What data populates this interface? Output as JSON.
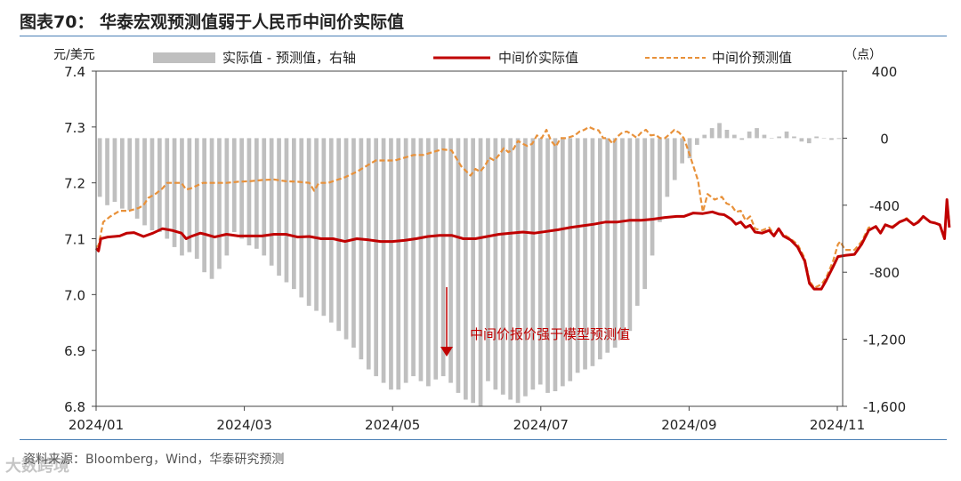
{
  "figure": {
    "title": "图表70：  华泰宏观预测值弱于人民币中间价实际值",
    "source": "资料来源：Bloomberg，Wind，华泰研究预测",
    "watermark": "大数跨境"
  },
  "colors": {
    "actual": "#c00000",
    "forecast": "#e8913a",
    "bars": "#bfbfbf",
    "annotation": "#c00000",
    "rule": "#4a7fb5"
  },
  "chart_data": {
    "type": "bar+line",
    "title": "华泰宏观预测值弱于人民币中间价实际值",
    "left_unit": "元/美元",
    "right_unit": "（点）",
    "ylim": [
      6.8,
      7.4
    ],
    "y_ticks": [
      "7.4",
      "7.3",
      "7.2",
      "7.1",
      "7.0",
      "6.9",
      "6.8"
    ],
    "y2lim": [
      -1600,
      400
    ],
    "y2_ticks": [
      "400",
      "0",
      "-400",
      "-800",
      "-1,200",
      "-1,600"
    ],
    "x_ticks": [
      "2024/01",
      "2024/03",
      "2024/05",
      "2024/07",
      "2024/09",
      "2024/11"
    ],
    "legend": {
      "bars": "实际值 - 预测值，右轴",
      "actual": "中间价实际值",
      "forecast": "中间价预测值"
    },
    "annotation": "中间价报价强于模型预测值",
    "days_total": 315,
    "actual": [
      [
        0,
        7.083
      ],
      [
        1,
        7.078
      ],
      [
        2,
        7.1
      ],
      [
        5,
        7.103
      ],
      [
        10,
        7.105
      ],
      [
        13,
        7.11
      ],
      [
        16,
        7.111
      ],
      [
        20,
        7.104
      ],
      [
        24,
        7.11
      ],
      [
        28,
        7.118
      ],
      [
        32,
        7.115
      ],
      [
        36,
        7.11
      ],
      [
        38,
        7.1
      ],
      [
        40,
        7.104
      ],
      [
        44,
        7.11
      ],
      [
        46,
        7.108
      ],
      [
        50,
        7.103
      ],
      [
        55,
        7.108
      ],
      [
        60,
        7.105
      ],
      [
        65,
        7.105
      ],
      [
        70,
        7.105
      ],
      [
        75,
        7.108
      ],
      [
        80,
        7.108
      ],
      [
        85,
        7.103
      ],
      [
        90,
        7.104
      ],
      [
        95,
        7.1
      ],
      [
        100,
        7.1
      ],
      [
        105,
        7.095
      ],
      [
        110,
        7.1
      ],
      [
        115,
        7.098
      ],
      [
        120,
        7.095
      ],
      [
        125,
        7.095
      ],
      [
        130,
        7.097
      ],
      [
        135,
        7.1
      ],
      [
        140,
        7.104
      ],
      [
        145,
        7.106
      ],
      [
        150,
        7.106
      ],
      [
        155,
        7.1
      ],
      [
        160,
        7.1
      ],
      [
        165,
        7.104
      ],
      [
        170,
        7.108
      ],
      [
        175,
        7.11
      ],
      [
        180,
        7.112
      ],
      [
        185,
        7.11
      ],
      [
        190,
        7.113
      ],
      [
        195,
        7.116
      ],
      [
        200,
        7.12
      ],
      [
        205,
        7.123
      ],
      [
        210,
        7.126
      ],
      [
        215,
        7.13
      ],
      [
        220,
        7.13
      ],
      [
        225,
        7.133
      ],
      [
        230,
        7.133
      ],
      [
        235,
        7.135
      ],
      [
        240,
        7.138
      ],
      [
        245,
        7.14
      ],
      [
        248,
        7.14
      ],
      [
        252,
        7.146
      ],
      [
        256,
        7.145
      ],
      [
        260,
        7.148
      ],
      [
        263,
        7.144
      ],
      [
        265,
        7.143
      ],
      [
        268,
        7.135
      ],
      [
        270,
        7.126
      ],
      [
        272,
        7.13
      ],
      [
        274,
        7.12
      ],
      [
        276,
        7.124
      ],
      [
        278,
        7.112
      ],
      [
        281,
        7.11
      ],
      [
        284,
        7.115
      ],
      [
        286,
        7.105
      ],
      [
        288,
        7.118
      ],
      [
        290,
        7.105
      ],
      [
        293,
        7.098
      ],
      [
        296,
        7.085
      ],
      [
        299,
        7.06
      ],
      [
        301,
        7.02
      ],
      [
        303,
        7.01
      ],
      [
        306,
        7.01
      ],
      [
        308,
        7.025
      ],
      [
        311,
        7.05
      ],
      [
        313,
        7.068
      ],
      [
        316,
        7.07
      ],
      [
        320,
        7.072
      ],
      [
        323,
        7.09
      ],
      [
        326,
        7.115
      ],
      [
        329,
        7.122
      ],
      [
        331,
        7.11
      ],
      [
        333,
        7.125
      ],
      [
        336,
        7.12
      ],
      [
        339,
        7.13
      ],
      [
        342,
        7.135
      ],
      [
        345,
        7.125
      ],
      [
        347,
        7.13
      ],
      [
        349,
        7.14
      ],
      [
        352,
        7.13
      ],
      [
        354,
        7.128
      ],
      [
        356,
        7.125
      ],
      [
        358,
        7.1
      ],
      [
        359,
        7.17
      ],
      [
        360,
        7.12
      ]
    ],
    "forecast": [
      [
        0,
        7.085
      ],
      [
        1,
        7.088
      ],
      [
        3,
        7.13
      ],
      [
        6,
        7.14
      ],
      [
        10,
        7.15
      ],
      [
        14,
        7.15
      ],
      [
        18,
        7.155
      ],
      [
        20,
        7.16
      ],
      [
        22,
        7.173
      ],
      [
        25,
        7.18
      ],
      [
        28,
        7.19
      ],
      [
        30,
        7.2
      ],
      [
        33,
        7.2
      ],
      [
        36,
        7.2
      ],
      [
        38,
        7.188
      ],
      [
        40,
        7.19
      ],
      [
        45,
        7.2
      ],
      [
        50,
        7.2
      ],
      [
        55,
        7.2
      ],
      [
        60,
        7.202
      ],
      [
        65,
        7.203
      ],
      [
        70,
        7.205
      ],
      [
        75,
        7.206
      ],
      [
        80,
        7.203
      ],
      [
        85,
        7.202
      ],
      [
        90,
        7.2
      ],
      [
        92,
        7.186
      ],
      [
        94,
        7.2
      ],
      [
        98,
        7.2
      ],
      [
        100,
        7.203
      ],
      [
        105,
        7.21
      ],
      [
        110,
        7.22
      ],
      [
        114,
        7.23
      ],
      [
        118,
        7.24
      ],
      [
        122,
        7.24
      ],
      [
        126,
        7.24
      ],
      [
        130,
        7.245
      ],
      [
        134,
        7.25
      ],
      [
        138,
        7.25
      ],
      [
        142,
        7.255
      ],
      [
        146,
        7.26
      ],
      [
        150,
        7.258
      ],
      [
        154,
        7.23
      ],
      [
        158,
        7.213
      ],
      [
        160,
        7.225
      ],
      [
        162,
        7.22
      ],
      [
        164,
        7.23
      ],
      [
        166,
        7.245
      ],
      [
        168,
        7.24
      ],
      [
        170,
        7.25
      ],
      [
        172,
        7.262
      ],
      [
        174,
        7.255
      ],
      [
        176,
        7.26
      ],
      [
        178,
        7.275
      ],
      [
        180,
        7.27
      ],
      [
        182,
        7.266
      ],
      [
        184,
        7.27
      ],
      [
        186,
        7.285
      ],
      [
        188,
        7.28
      ],
      [
        190,
        7.295
      ],
      [
        192,
        7.275
      ],
      [
        194,
        7.265
      ],
      [
        196,
        7.28
      ],
      [
        198,
        7.28
      ],
      [
        200,
        7.282
      ],
      [
        202,
        7.285
      ],
      [
        204,
        7.292
      ],
      [
        206,
        7.295
      ],
      [
        208,
        7.3
      ],
      [
        210,
        7.296
      ],
      [
        212,
        7.294
      ],
      [
        214,
        7.28
      ],
      [
        216,
        7.28
      ],
      [
        218,
        7.27
      ],
      [
        220,
        7.283
      ],
      [
        222,
        7.29
      ],
      [
        224,
        7.292
      ],
      [
        226,
        7.287
      ],
      [
        228,
        7.281
      ],
      [
        230,
        7.29
      ],
      [
        232,
        7.295
      ],
      [
        234,
        7.285
      ],
      [
        236,
        7.286
      ],
      [
        238,
        7.28
      ],
      [
        240,
        7.28
      ],
      [
        242,
        7.287
      ],
      [
        244,
        7.295
      ],
      [
        246,
        7.29
      ],
      [
        248,
        7.28
      ],
      [
        250,
        7.256
      ],
      [
        252,
        7.23
      ],
      [
        254,
        7.204
      ],
      [
        255,
        7.175
      ],
      [
        256,
        7.148
      ],
      [
        258,
        7.18
      ],
      [
        261,
        7.17
      ],
      [
        264,
        7.175
      ],
      [
        266,
        7.163
      ],
      [
        268,
        7.16
      ],
      [
        270,
        7.148
      ],
      [
        272,
        7.15
      ],
      [
        274,
        7.133
      ],
      [
        276,
        7.14
      ],
      [
        278,
        7.118
      ],
      [
        281,
        7.115
      ],
      [
        284,
        7.12
      ],
      [
        286,
        7.108
      ],
      [
        288,
        7.116
      ],
      [
        290,
        7.108
      ],
      [
        293,
        7.1
      ],
      [
        296,
        7.09
      ],
      [
        299,
        7.065
      ],
      [
        301,
        7.025
      ],
      [
        303,
        7.012
      ],
      [
        306,
        7.018
      ],
      [
        308,
        7.03
      ],
      [
        311,
        7.06
      ],
      [
        313,
        7.09
      ],
      [
        314,
        7.095
      ],
      [
        316,
        7.08
      ],
      [
        320,
        7.08
      ],
      [
        323,
        7.095
      ],
      [
        326,
        7.12
      ],
      [
        329,
        7.12
      ],
      [
        331,
        7.112
      ],
      [
        333,
        7.125
      ],
      [
        336,
        7.122
      ],
      [
        339,
        7.13
      ],
      [
        342,
        7.137
      ],
      [
        345,
        7.125
      ],
      [
        347,
        7.132
      ],
      [
        349,
        7.14
      ],
      [
        352,
        7.13
      ],
      [
        354,
        7.128
      ],
      [
        356,
        7.125
      ],
      [
        358,
        7.1
      ],
      [
        359,
        7.165
      ],
      [
        360,
        7.13
      ]
    ],
    "diff_bars": [
      -350,
      -400,
      -380,
      -420,
      -430,
      -480,
      -520,
      -550,
      -560,
      -600,
      -650,
      -700,
      -680,
      -720,
      -800,
      -840,
      -780,
      -700,
      -560,
      -600,
      -640,
      -660,
      -700,
      -760,
      -820,
      -860,
      -900,
      -950,
      -1000,
      -1030,
      -1060,
      -1100,
      -1150,
      -1200,
      -1250,
      -1320,
      -1380,
      -1420,
      -1460,
      -1500,
      -1500,
      -1460,
      -1420,
      -1450,
      -1480,
      -1440,
      -1420,
      -1460,
      -1520,
      -1560,
      -1580,
      -1600,
      -1450,
      -1500,
      -1530,
      -1560,
      -1580,
      -1540,
      -1500,
      -1470,
      -1520,
      -1510,
      -1480,
      -1450,
      -1400,
      -1380,
      -1360,
      -1320,
      -1280,
      -1250,
      -1200,
      -1150,
      -1000,
      -900,
      -700,
      -500,
      -350,
      -250,
      -150,
      -120,
      -40,
      20,
      60,
      90,
      50,
      20,
      -10,
      40,
      60,
      20,
      0,
      10,
      40,
      10,
      -20,
      -30,
      10,
      0,
      -10,
      -5
    ]
  }
}
